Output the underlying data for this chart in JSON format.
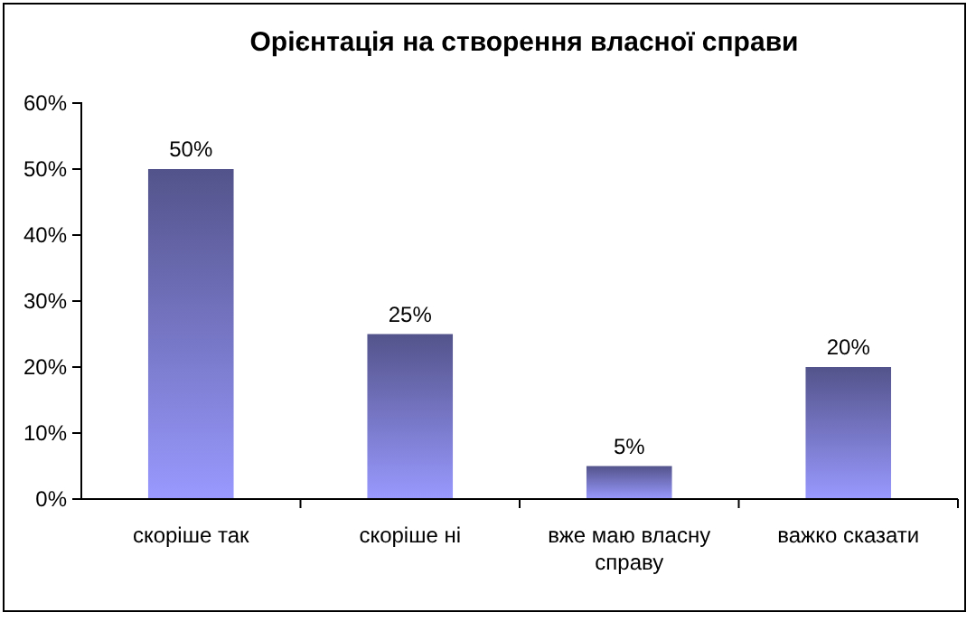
{
  "chart_data": {
    "type": "bar",
    "title": "Орієнтація на створення власної справи",
    "categories": [
      "скоріше так",
      "скоріше ні",
      "вже маю власну справу",
      "важко сказати"
    ],
    "values": [
      50,
      25,
      5,
      20
    ],
    "value_labels": [
      "50%",
      "25%",
      "5%",
      "20%"
    ],
    "color": "#9999ff",
    "ylim": [
      0,
      60
    ],
    "yticks": [
      {
        "value": 0,
        "label": "0%"
      },
      {
        "value": 10,
        "label": "10%"
      },
      {
        "value": 20,
        "label": "20%"
      },
      {
        "value": 30,
        "label": "30%"
      },
      {
        "value": 40,
        "label": "40%"
      },
      {
        "value": 50,
        "label": "50%"
      },
      {
        "value": 60,
        "label": "60%"
      }
    ],
    "grid": false
  }
}
